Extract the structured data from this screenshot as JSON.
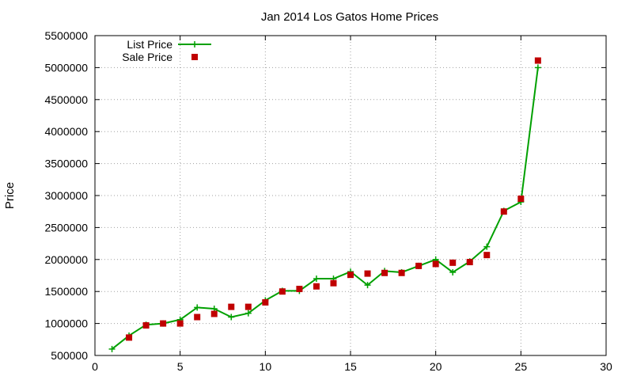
{
  "chart_data": {
    "type": "line",
    "title": "Jan 2014 Los Gatos Home Prices",
    "xlabel": "",
    "ylabel": "Price",
    "xlim": [
      0,
      30
    ],
    "ylim": [
      500000,
      5500000
    ],
    "x_ticks": [
      0,
      5,
      10,
      15,
      20,
      25,
      30
    ],
    "y_ticks": [
      500000,
      1000000,
      1500000,
      2000000,
      2500000,
      3000000,
      3500000,
      4000000,
      4500000,
      5000000,
      5500000
    ],
    "grid": true,
    "legend_position": "top-left",
    "series": [
      {
        "name": "List Price",
        "style": "line-with-plus-markers",
        "color": "#00a000",
        "points": [
          [
            1,
            600000
          ],
          [
            2,
            810000
          ],
          [
            3,
            980000
          ],
          [
            4,
            1000000
          ],
          [
            5,
            1060000
          ],
          [
            6,
            1250000
          ],
          [
            7,
            1230000
          ],
          [
            8,
            1100000
          ],
          [
            9,
            1160000
          ],
          [
            10,
            1360000
          ],
          [
            11,
            1510000
          ],
          [
            12,
            1510000
          ],
          [
            13,
            1700000
          ],
          [
            14,
            1700000
          ],
          [
            15,
            1810000
          ],
          [
            16,
            1600000
          ],
          [
            17,
            1820000
          ],
          [
            18,
            1800000
          ],
          [
            19,
            1900000
          ],
          [
            20,
            2000000
          ],
          [
            21,
            1800000
          ],
          [
            22,
            1970000
          ],
          [
            23,
            2200000
          ],
          [
            24,
            2760000
          ],
          [
            25,
            2900000
          ],
          [
            26,
            5000000
          ]
        ]
      },
      {
        "name": "Sale Price",
        "style": "square-markers",
        "color": "#c00000",
        "points": [
          [
            2,
            780000
          ],
          [
            3,
            970000
          ],
          [
            4,
            1000000
          ],
          [
            5,
            1000000
          ],
          [
            6,
            1100000
          ],
          [
            7,
            1150000
          ],
          [
            8,
            1260000
          ],
          [
            9,
            1260000
          ],
          [
            10,
            1330000
          ],
          [
            11,
            1500000
          ],
          [
            12,
            1540000
          ],
          [
            13,
            1580000
          ],
          [
            14,
            1630000
          ],
          [
            15,
            1760000
          ],
          [
            16,
            1780000
          ],
          [
            17,
            1790000
          ],
          [
            18,
            1790000
          ],
          [
            19,
            1900000
          ],
          [
            20,
            1930000
          ],
          [
            21,
            1950000
          ],
          [
            22,
            1960000
          ],
          [
            23,
            2070000
          ],
          [
            24,
            2750000
          ],
          [
            25,
            2950000
          ],
          [
            26,
            5110000
          ]
        ]
      }
    ]
  }
}
